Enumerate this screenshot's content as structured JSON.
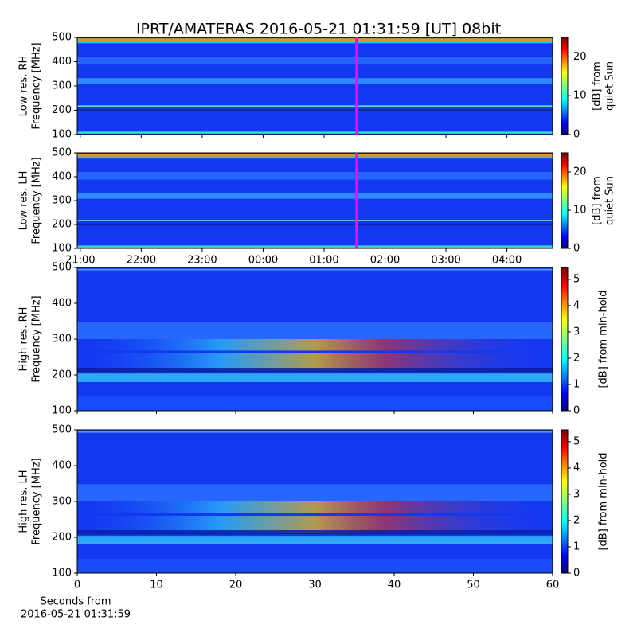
{
  "title": "IPRT/AMATERAS 2016-05-21 01:31:59 [UT]   08bit",
  "xlabel": [
    "Seconds from",
    "2016-05-21 01:31:59"
  ],
  "chart_data": [
    {
      "type": "heatmap",
      "ylabel": [
        "Low res. RH",
        "Frequency [MHz]"
      ],
      "xlim": [
        20.95,
        28.75
      ],
      "ylim": [
        100,
        500
      ],
      "yticks": [
        100,
        200,
        300,
        400,
        500
      ],
      "marker_x": 25.533,
      "marker_color": "#ff00ff",
      "colorbar": {
        "label": [
          "[dB] from",
          "quiet Sun"
        ],
        "lim": [
          0,
          25
        ],
        "ticks": [
          0,
          10,
          20
        ]
      }
    },
    {
      "type": "heatmap",
      "ylabel": [
        "Low res. LH",
        "Frequency [MHz]"
      ],
      "xlim": [
        20.95,
        28.75
      ],
      "ylim": [
        100,
        500
      ],
      "yticks": [
        100,
        200,
        300,
        400,
        500
      ],
      "marker_x": 25.533,
      "marker_color": "#ff00ff",
      "xticks": [
        {
          "value": 21,
          "label": "21:00"
        },
        {
          "value": 22,
          "label": "22:00"
        },
        {
          "value": 23,
          "label": "23:00"
        },
        {
          "value": 24,
          "label": "00:00"
        },
        {
          "value": 25,
          "label": "01:00"
        },
        {
          "value": 26,
          "label": "02:00"
        },
        {
          "value": 27,
          "label": "03:00"
        },
        {
          "value": 28,
          "label": "04:00"
        }
      ],
      "colorbar": {
        "label": [
          "[dB] from",
          "quiet Sun"
        ],
        "lim": [
          0,
          25
        ],
        "ticks": [
          0,
          10,
          20
        ]
      }
    },
    {
      "type": "heatmap",
      "ylabel": [
        "High res. RH",
        "Frequency [MHz]"
      ],
      "xlim": [
        0,
        60
      ],
      "ylim": [
        100,
        500
      ],
      "yticks": [
        100,
        200,
        300,
        400,
        500
      ],
      "colorbar": {
        "label": [
          "[dB] from min-hold"
        ],
        "lim": [
          0,
          5.45
        ],
        "ticks": [
          0,
          1,
          2,
          3,
          4,
          5
        ]
      }
    },
    {
      "type": "heatmap",
      "ylabel": [
        "High res. LH",
        "Frequency [MHz]"
      ],
      "xlim": [
        0,
        60
      ],
      "ylim": [
        100,
        500
      ],
      "yticks": [
        100,
        200,
        300,
        400,
        500
      ],
      "xticks": [
        0,
        10,
        20,
        30,
        40,
        50,
        60
      ],
      "colorbar": {
        "label": [
          "[dB] from min-hold"
        ],
        "lim": [
          0,
          5.45
        ],
        "ticks": [
          0,
          1,
          2,
          3,
          4,
          5
        ]
      }
    }
  ]
}
